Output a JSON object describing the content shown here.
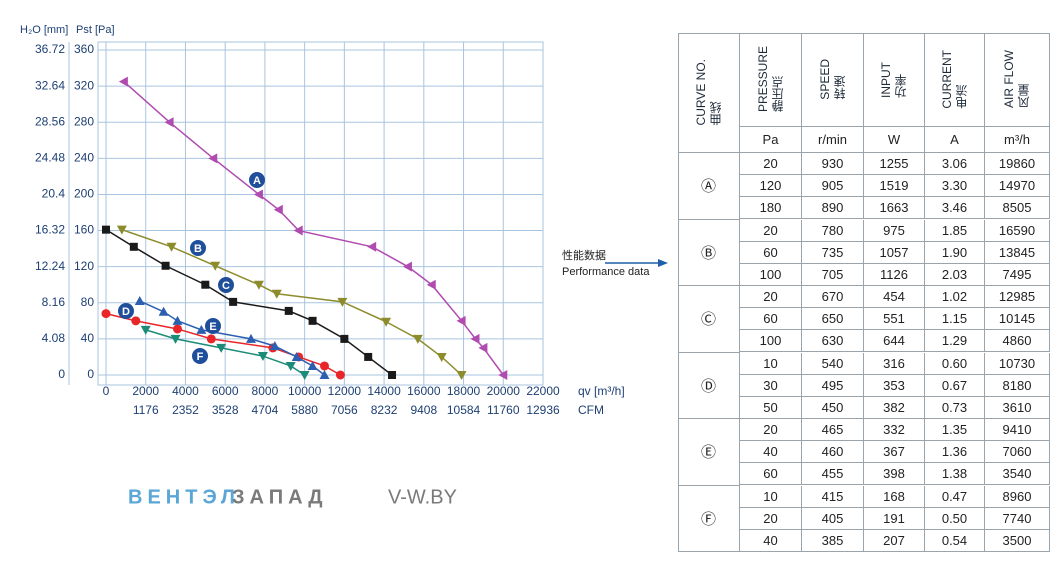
{
  "chart_data": {
    "type": "line",
    "y_label": "Pst [Pa]",
    "y2_label": "H₂O [mm]",
    "x_label": "qv [m³/h]",
    "x2_label": "CFM",
    "xlim": [
      0,
      22000
    ],
    "xticks": [
      0,
      2000,
      4000,
      6000,
      8000,
      10000,
      12000,
      14000,
      16000,
      18000,
      20000,
      22000
    ],
    "x2lim": [
      0,
      12936
    ],
    "x2ticks": [
      1176,
      2352,
      3528,
      4704,
      5880,
      7056,
      8232,
      9408,
      10584,
      11760,
      12936
    ],
    "ylim": [
      0,
      360
    ],
    "yticks": [
      0,
      40,
      80,
      120,
      160,
      200,
      240,
      280,
      320,
      360
    ],
    "y2lim": [
      0,
      36.72
    ],
    "y2ticks": [
      0,
      4.08,
      8.16,
      12.24,
      16.32,
      20.4,
      24.48,
      28.56,
      32.64,
      36.72
    ],
    "grid": true,
    "series": [
      {
        "name": "A",
        "color": "#b04bb0",
        "marker": "triangle-left",
        "x": [
          900,
          3200,
          5400,
          7700,
          8700,
          9700,
          13400,
          15200,
          16400,
          17900,
          18600,
          19000,
          20000
        ],
        "values": [
          325,
          280,
          240,
          200,
          183,
          160,
          142,
          120,
          100,
          60,
          40,
          30,
          0
        ]
      },
      {
        "name": "B",
        "color": "#8c8c2c",
        "marker": "triangle-down",
        "x": [
          800,
          3300,
          5500,
          7700,
          8600,
          11900,
          14100,
          15700,
          16900,
          17900
        ],
        "values": [
          161,
          142,
          121,
          100,
          90,
          81,
          59,
          40,
          20,
          0
        ]
      },
      {
        "name": "C",
        "color": "#1a1a1a",
        "marker": "square",
        "x": [
          0,
          1400,
          3000,
          5000,
          6400,
          9200,
          10400,
          12000,
          13200,
          14400
        ],
        "values": [
          161,
          142,
          121,
          100,
          81,
          71,
          60,
          40,
          20,
          0
        ]
      },
      {
        "name": "D",
        "color": "#e8262a",
        "marker": "circle",
        "x": [
          0,
          1500,
          3600,
          5300,
          8400,
          9700,
          11000,
          11800
        ],
        "values": [
          68,
          60,
          51,
          40,
          30,
          20,
          10,
          0
        ]
      },
      {
        "name": "E",
        "color": "#2d5fb0",
        "marker": "triangle-up",
        "x": [
          1700,
          2900,
          3600,
          4800,
          7300,
          8500,
          9600,
          10400,
          11000
        ],
        "values": [
          82,
          70,
          60,
          50,
          40,
          32,
          20,
          10,
          0
        ]
      },
      {
        "name": "F",
        "color": "#1c8c78",
        "marker": "triangle-down",
        "x": [
          2000,
          3500,
          5800,
          7900,
          9300,
          10000
        ],
        "values": [
          50,
          40,
          30,
          21,
          10,
          0
        ]
      }
    ]
  },
  "annotation": {
    "cn": "性能数据",
    "en": "Performance data"
  },
  "logo": {
    "part1": "ВЕНТЭЛ",
    "part2": "ЗАПАД",
    "site": "V-W.BY"
  },
  "table": {
    "headers": [
      {
        "name": "CURVE NO.",
        "cn": "曲线"
      },
      {
        "name": "PRESSURE",
        "cn": "静压点",
        "unit": "Pa"
      },
      {
        "name": "SPEED",
        "cn": "转速",
        "unit": "r/min"
      },
      {
        "name": "INPUT",
        "cn": "功率",
        "unit": "W"
      },
      {
        "name": "CURRENT",
        "cn": "电流",
        "unit": "A"
      },
      {
        "name": "AIR FLOW",
        "cn": "风量",
        "unit": "m³/h"
      }
    ],
    "groups": [
      {
        "curve": "Ⓐ",
        "rows": [
          [
            "20",
            "930",
            "1255",
            "3.06",
            "19860"
          ],
          [
            "120",
            "905",
            "1519",
            "3.30",
            "14970"
          ],
          [
            "180",
            "890",
            "1663",
            "3.46",
            "8505"
          ]
        ]
      },
      {
        "curve": "Ⓑ",
        "rows": [
          [
            "20",
            "780",
            "975",
            "1.85",
            "16590"
          ],
          [
            "60",
            "735",
            "1057",
            "1.90",
            "13845"
          ],
          [
            "100",
            "705",
            "1126",
            "2.03",
            "7495"
          ]
        ]
      },
      {
        "curve": "Ⓒ",
        "rows": [
          [
            "20",
            "670",
            "454",
            "1.02",
            "12985"
          ],
          [
            "60",
            "650",
            "551",
            "1.15",
            "10145"
          ],
          [
            "100",
            "630",
            "644",
            "1.29",
            "4860"
          ]
        ]
      },
      {
        "curve": "Ⓓ",
        "rows": [
          [
            "10",
            "540",
            "316",
            "0.60",
            "10730"
          ],
          [
            "30",
            "495",
            "353",
            "0.67",
            "8180"
          ],
          [
            "50",
            "450",
            "382",
            "0.73",
            "3610"
          ]
        ]
      },
      {
        "curve": "Ⓔ",
        "rows": [
          [
            "20",
            "465",
            "332",
            "1.35",
            "9410"
          ],
          [
            "40",
            "460",
            "367",
            "1.36",
            "7060"
          ],
          [
            "60",
            "455",
            "398",
            "1.38",
            "3540"
          ]
        ]
      },
      {
        "curve": "Ⓕ",
        "rows": [
          [
            "10",
            "415",
            "168",
            "0.47",
            "8960"
          ],
          [
            "20",
            "405",
            "191",
            "0.50",
            "7740"
          ],
          [
            "40",
            "385",
            "207",
            "0.54",
            "3500"
          ]
        ]
      }
    ]
  }
}
